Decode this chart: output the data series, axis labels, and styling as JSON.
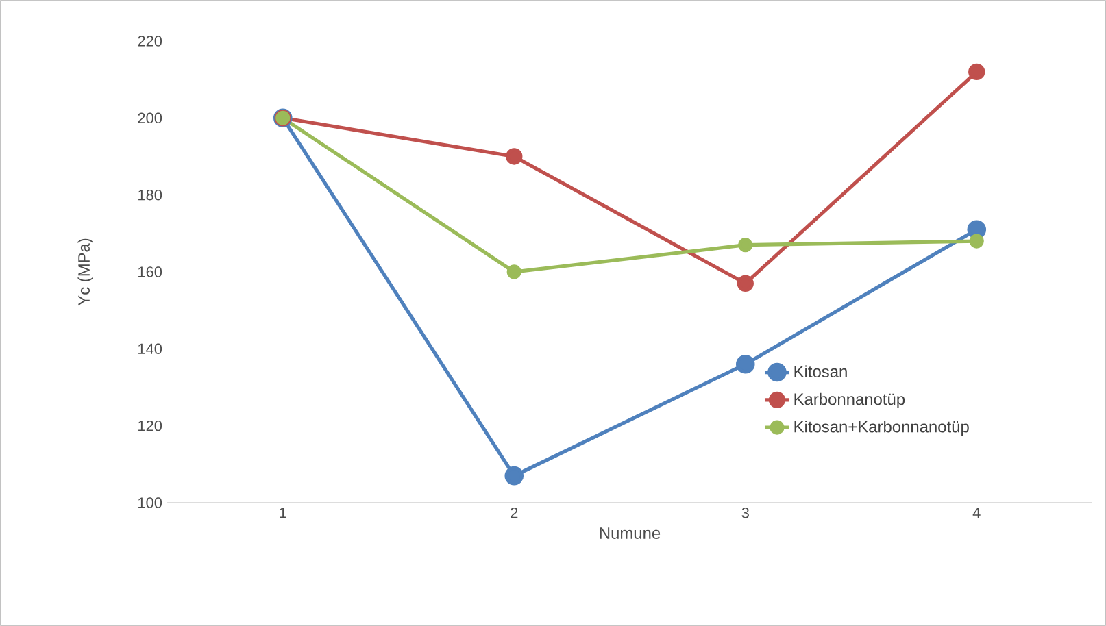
{
  "chart_data": {
    "type": "line",
    "xlabel": "Numune",
    "ylabel": "Yc (MPa)",
    "categories": [
      "1",
      "2",
      "3",
      "4"
    ],
    "series": [
      {
        "name": "Kitosan",
        "color": "#4f81bd",
        "values": [
          200,
          107,
          136,
          171
        ]
      },
      {
        "name": "Karbonnanotüp",
        "color": "#c0504d",
        "values": [
          200,
          190,
          157,
          212
        ]
      },
      {
        "name": "Kitosan+Karbonnanotüp",
        "color": "#9bbb59",
        "values": [
          200,
          160,
          167,
          168
        ]
      }
    ],
    "ylim": [
      100,
      220
    ],
    "yticks": [
      100,
      120,
      140,
      160,
      180,
      200,
      220
    ],
    "legend": "bottom right",
    "marker": "circle",
    "line_style": "solid",
    "grid": false
  }
}
